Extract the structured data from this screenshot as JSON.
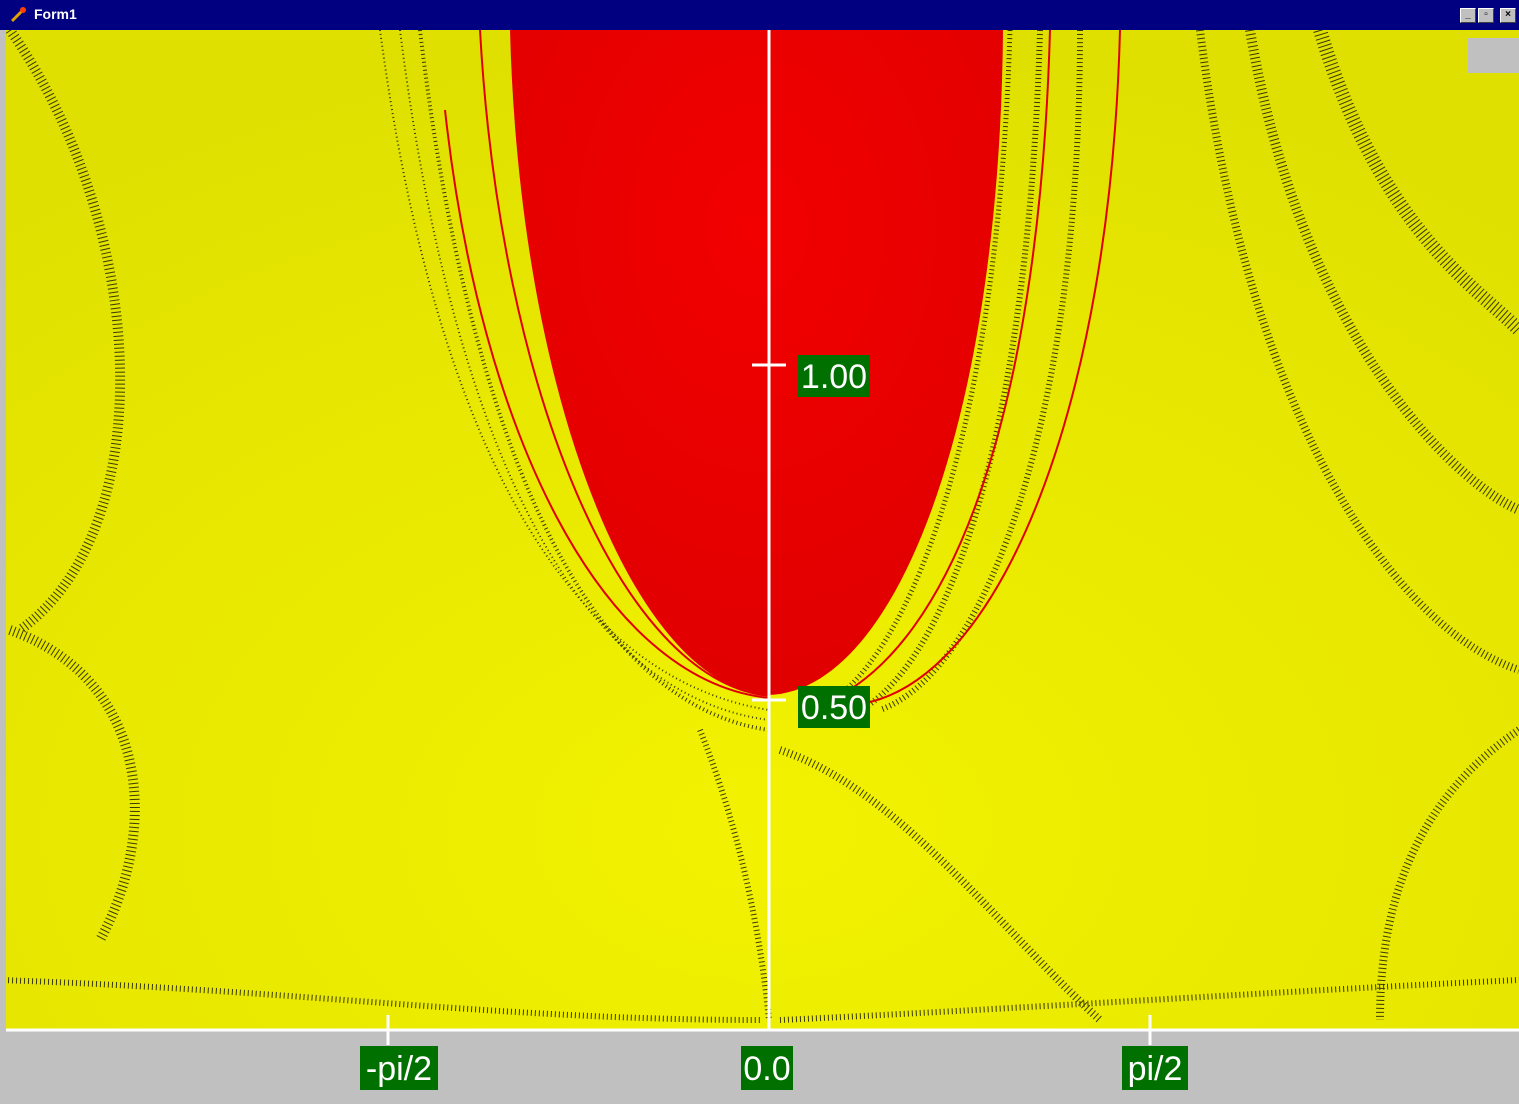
{
  "window": {
    "title": "Form1"
  },
  "plot": {
    "y_labels": [
      "1.00",
      "0.50"
    ],
    "x_labels": [
      "-pi/2",
      "0.0",
      "pi/2"
    ]
  }
}
